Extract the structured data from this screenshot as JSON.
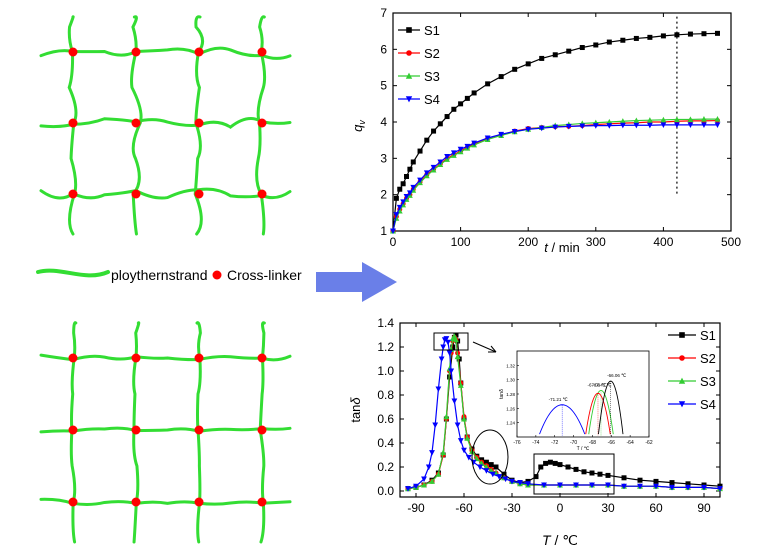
{
  "legend_row": {
    "strand_label": "ploythernstrand",
    "crosslinker_label": "Cross-linker"
  },
  "colors": {
    "strand": "#33dd33",
    "crosslinker": "#ff0000",
    "arrow": "#6a7fe8",
    "S1": "#000000",
    "S2": "#ff0000",
    "S3": "#33cc33",
    "S4": "#0000ff"
  },
  "chart_data": [
    {
      "type": "line",
      "xlabel": "t / min",
      "ylabel": "q_v",
      "xlim": [
        0,
        500
      ],
      "ylim": [
        1,
        7
      ],
      "xticks": [
        0,
        100,
        200,
        300,
        400,
        500
      ],
      "yticks": [
        1,
        2,
        3,
        4,
        5,
        6,
        7
      ],
      "legend_position": "top-left",
      "marker_line_x": 420,
      "series": [
        {
          "name": "S1",
          "marker": "square",
          "x": [
            0,
            5,
            10,
            15,
            20,
            25,
            30,
            40,
            50,
            60,
            70,
            80,
            90,
            100,
            110,
            120,
            140,
            160,
            180,
            200,
            220,
            240,
            260,
            280,
            300,
            320,
            340,
            360,
            380,
            400,
            420,
            440,
            460,
            480
          ],
          "y": [
            1.0,
            1.9,
            2.15,
            2.3,
            2.5,
            2.7,
            2.9,
            3.2,
            3.5,
            3.75,
            3.95,
            4.15,
            4.35,
            4.5,
            4.65,
            4.8,
            5.05,
            5.25,
            5.45,
            5.6,
            5.75,
            5.85,
            5.95,
            6.05,
            6.12,
            6.2,
            6.25,
            6.3,
            6.33,
            6.37,
            6.4,
            6.42,
            6.43,
            6.44
          ]
        },
        {
          "name": "S2",
          "marker": "circle",
          "x": [
            0,
            5,
            10,
            15,
            20,
            25,
            30,
            40,
            50,
            60,
            70,
            80,
            90,
            100,
            110,
            120,
            140,
            160,
            180,
            200,
            220,
            240,
            260,
            280,
            300,
            320,
            340,
            360,
            380,
            400,
            420,
            440,
            460,
            480
          ],
          "y": [
            1.0,
            1.4,
            1.6,
            1.75,
            1.9,
            2.0,
            2.15,
            2.35,
            2.55,
            2.7,
            2.85,
            3.0,
            3.1,
            3.2,
            3.3,
            3.4,
            3.55,
            3.65,
            3.75,
            3.82,
            3.85,
            3.87,
            3.88,
            3.9,
            3.93,
            3.95,
            3.97,
            3.98,
            4.0,
            4.0,
            4.02,
            4.03,
            4.03,
            4.04
          ]
        },
        {
          "name": "S3",
          "marker": "triangle-up",
          "x": [
            0,
            5,
            10,
            15,
            20,
            25,
            30,
            40,
            50,
            60,
            70,
            80,
            90,
            100,
            110,
            120,
            140,
            160,
            180,
            200,
            220,
            240,
            260,
            280,
            300,
            320,
            340,
            360,
            380,
            400,
            420,
            440,
            460,
            480
          ],
          "y": [
            1.0,
            1.35,
            1.55,
            1.72,
            1.87,
            1.98,
            2.12,
            2.33,
            2.52,
            2.68,
            2.83,
            2.97,
            3.08,
            3.18,
            3.28,
            3.37,
            3.52,
            3.63,
            3.73,
            3.8,
            3.85,
            3.9,
            3.93,
            3.96,
            3.98,
            4.0,
            4.02,
            4.04,
            4.05,
            4.06,
            4.07,
            4.07,
            4.08,
            4.08
          ]
        },
        {
          "name": "S4",
          "marker": "triangle-down",
          "x": [
            0,
            5,
            10,
            15,
            20,
            25,
            30,
            40,
            50,
            60,
            70,
            80,
            90,
            100,
            110,
            120,
            140,
            160,
            180,
            200,
            220,
            240,
            260,
            280,
            300,
            320,
            340,
            360,
            380,
            400,
            420,
            440,
            460,
            480
          ],
          "y": [
            1.0,
            1.45,
            1.65,
            1.8,
            1.95,
            2.05,
            2.2,
            2.4,
            2.6,
            2.75,
            2.9,
            3.05,
            3.15,
            3.25,
            3.33,
            3.42,
            3.56,
            3.66,
            3.74,
            3.8,
            3.83,
            3.86,
            3.88,
            3.89,
            3.9,
            3.9,
            3.91,
            3.91,
            3.91,
            3.92,
            3.92,
            3.92,
            3.92,
            3.92
          ]
        }
      ]
    },
    {
      "type": "line",
      "xlabel": "T / ℃",
      "ylabel": "tanδ",
      "xlim": [
        -100,
        100
      ],
      "ylim": [
        -0.05,
        1.4
      ],
      "xticks": [
        -90,
        -60,
        -30,
        0,
        30,
        60,
        90
      ],
      "yticks": [
        0.0,
        0.2,
        0.4,
        0.6,
        0.8,
        1.0,
        1.2,
        1.4
      ],
      "legend_position": "right",
      "series": [
        {
          "name": "S1",
          "marker": "square",
          "x": [
            -95,
            -90,
            -85,
            -80,
            -76,
            -73,
            -71,
            -69,
            -67,
            -66,
            -65,
            -64,
            -63,
            -62,
            -60,
            -58,
            -55,
            -52,
            -49,
            -46,
            -43,
            -40,
            -35,
            -30,
            -25,
            -20,
            -15,
            -12,
            -9,
            -6,
            -3,
            0,
            5,
            10,
            15,
            20,
            25,
            30,
            40,
            50,
            60,
            70,
            80,
            90,
            100
          ],
          "y": [
            0.02,
            0.03,
            0.05,
            0.09,
            0.15,
            0.3,
            0.6,
            0.95,
            1.2,
            1.28,
            1.3,
            1.25,
            1.1,
            0.9,
            0.6,
            0.45,
            0.35,
            0.29,
            0.26,
            0.24,
            0.22,
            0.2,
            0.14,
            0.09,
            0.07,
            0.08,
            0.12,
            0.2,
            0.23,
            0.24,
            0.23,
            0.22,
            0.2,
            0.18,
            0.16,
            0.15,
            0.14,
            0.13,
            0.11,
            0.09,
            0.08,
            0.07,
            0.06,
            0.05,
            0.04
          ]
        },
        {
          "name": "S2",
          "marker": "circle",
          "x": [
            -95,
            -90,
            -85,
            -80,
            -76,
            -73,
            -71,
            -69,
            -68,
            -67,
            -66,
            -65,
            -64,
            -62,
            -60,
            -58,
            -55,
            -52,
            -49,
            -46,
            -43,
            -40,
            -35,
            -30,
            -25,
            -20,
            -10,
            0,
            10,
            20,
            30,
            40,
            50,
            60,
            70,
            80,
            90,
            100
          ],
          "y": [
            0.02,
            0.03,
            0.05,
            0.08,
            0.14,
            0.3,
            0.6,
            1.0,
            1.15,
            1.25,
            1.28,
            1.26,
            1.15,
            0.9,
            0.62,
            0.45,
            0.34,
            0.28,
            0.24,
            0.21,
            0.18,
            0.15,
            0.11,
            0.08,
            0.06,
            0.05,
            0.05,
            0.05,
            0.05,
            0.05,
            0.05,
            0.04,
            0.04,
            0.04,
            0.03,
            0.03,
            0.03,
            0.02
          ]
        },
        {
          "name": "S3",
          "marker": "triangle-up",
          "x": [
            -95,
            -90,
            -85,
            -80,
            -76,
            -73,
            -71,
            -69,
            -68,
            -67,
            -66,
            -65,
            -64,
            -62,
            -60,
            -58,
            -55,
            -52,
            -49,
            -46,
            -43,
            -40,
            -35,
            -30,
            -25,
            -20,
            -10,
            0,
            10,
            20,
            30,
            40,
            50,
            60,
            70,
            80,
            90,
            100
          ],
          "y": [
            0.02,
            0.03,
            0.05,
            0.08,
            0.14,
            0.32,
            0.62,
            1.02,
            1.18,
            1.27,
            1.29,
            1.26,
            1.12,
            0.88,
            0.6,
            0.44,
            0.33,
            0.27,
            0.23,
            0.2,
            0.17,
            0.15,
            0.11,
            0.08,
            0.06,
            0.05,
            0.05,
            0.05,
            0.05,
            0.05,
            0.05,
            0.04,
            0.04,
            0.04,
            0.03,
            0.03,
            0.03,
            0.02
          ]
        },
        {
          "name": "S4",
          "marker": "triangle-down",
          "x": [
            -95,
            -90,
            -85,
            -82,
            -80,
            -78,
            -76,
            -74,
            -73,
            -72,
            -71,
            -70,
            -69,
            -68,
            -66,
            -64,
            -62,
            -60,
            -57,
            -54,
            -50,
            -46,
            -42,
            -38,
            -34,
            -30,
            -25,
            -20,
            -10,
            0,
            10,
            20,
            30,
            40,
            50,
            60,
            70,
            80,
            90,
            100
          ],
          "y": [
            0.02,
            0.04,
            0.1,
            0.2,
            0.32,
            0.55,
            0.85,
            1.1,
            1.2,
            1.26,
            1.27,
            1.24,
            1.15,
            1.0,
            0.75,
            0.55,
            0.42,
            0.34,
            0.28,
            0.24,
            0.2,
            0.17,
            0.14,
            0.12,
            0.1,
            0.08,
            0.07,
            0.06,
            0.05,
            0.05,
            0.05,
            0.05,
            0.05,
            0.04,
            0.04,
            0.04,
            0.03,
            0.03,
            0.03,
            0.02
          ]
        }
      ],
      "inset": {
        "xlim": [
          -76,
          -62
        ],
        "ylim": [
          1.22,
          1.34
        ],
        "xlabel": "T / ℃",
        "ylabel": "tanδ",
        "xticks": [
          -76,
          -74,
          -72,
          -70,
          -68,
          -66,
          -64,
          -62
        ],
        "yticks": [
          1.24,
          1.26,
          1.28,
          1.3,
          1.32
        ],
        "peaks": [
          {
            "name": "S4",
            "x": -71.21,
            "label": "-71.21 ℃"
          },
          {
            "name": "S3",
            "x": -67.09,
            "label": "-67.09 ℃"
          },
          {
            "name": "S2",
            "x": -67.41,
            "label": "-67.41 ℃"
          },
          {
            "name": "S1",
            "x": -66.06,
            "label": "-66.06 ℃"
          }
        ]
      }
    }
  ]
}
